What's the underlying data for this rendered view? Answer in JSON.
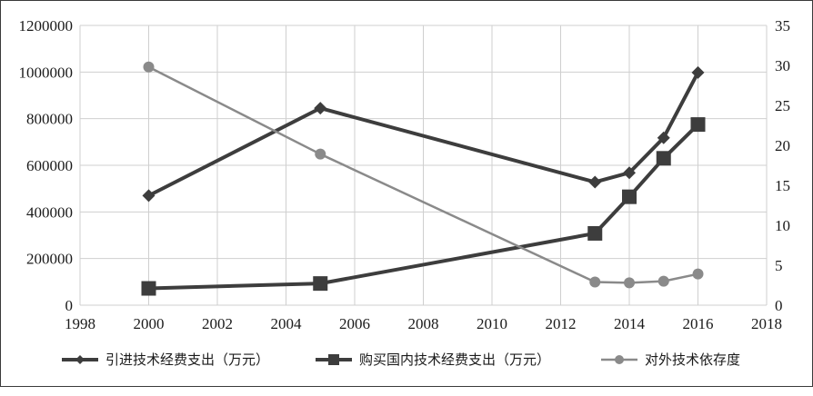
{
  "chart_data": {
    "type": "line",
    "x_axis": {
      "min": 1998,
      "max": 2018,
      "step": 2,
      "ticks": [
        "1998",
        "2000",
        "2002",
        "2004",
        "2006",
        "2008",
        "2010",
        "2012",
        "2014",
        "2016",
        "2018"
      ]
    },
    "y_left": {
      "min": 0,
      "max": 1200000,
      "step": 200000,
      "ticks": [
        "0",
        "200000",
        "400000",
        "600000",
        "800000",
        "1000000",
        "1200000"
      ]
    },
    "y_right": {
      "min": 0,
      "max": 35,
      "step": 5,
      "ticks": [
        "0",
        "5",
        "10",
        "15",
        "20",
        "25",
        "30",
        "35"
      ]
    },
    "grid": true,
    "legend_position": "bottom",
    "series": [
      {
        "name": "引进技术经费支出（万元）",
        "axis": "left",
        "marker": "diamond",
        "color": "#3d3d3d",
        "points": [
          [
            2000,
            470000
          ],
          [
            2005,
            845000
          ],
          [
            2013,
            528000
          ],
          [
            2014,
            568000
          ],
          [
            2015,
            718000
          ],
          [
            2016,
            998000
          ]
        ]
      },
      {
        "name": "购买国内技术经费支出（万元）",
        "axis": "left",
        "marker": "square",
        "color": "#3d3d3d",
        "points": [
          [
            2000,
            72000
          ],
          [
            2005,
            93000
          ],
          [
            2013,
            308000
          ],
          [
            2014,
            465000
          ],
          [
            2015,
            630000
          ],
          [
            2016,
            775000
          ]
        ]
      },
      {
        "name": "对外技术依存度",
        "axis": "right",
        "marker": "circle",
        "color": "#8a8a8a",
        "points": [
          [
            2000,
            29.8
          ],
          [
            2005,
            18.9
          ],
          [
            2013,
            2.9
          ],
          [
            2014,
            2.8
          ],
          [
            2015,
            3.0
          ],
          [
            2016,
            3.9
          ]
        ]
      }
    ]
  }
}
